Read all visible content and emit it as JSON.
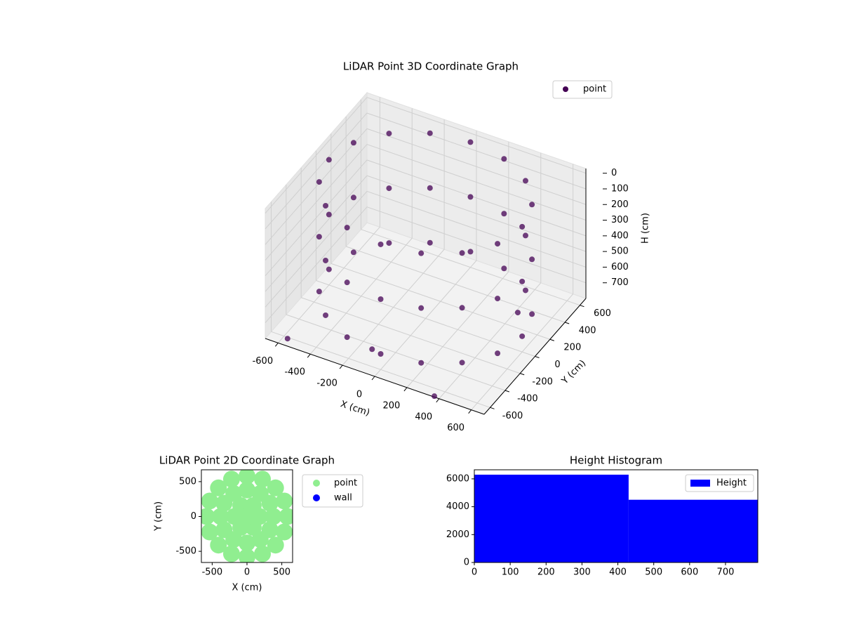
{
  "chart_data": [
    {
      "type": "scatter3d",
      "title": "LiDAR Point 3D Coordinate Graph",
      "xlabel": "X (cm)",
      "ylabel": "Y (cm)",
      "zlabel": "H (cm)",
      "xlim": [
        -680,
        680
      ],
      "ylim": [
        -680,
        680
      ],
      "zlim": [
        800,
        -30
      ],
      "xticks": [
        -600,
        -400,
        -200,
        0,
        200,
        400,
        600
      ],
      "yticks": [
        -600,
        -400,
        -200,
        0,
        200,
        400,
        600
      ],
      "zticks": [
        0,
        100,
        200,
        300,
        400,
        500,
        600,
        700
      ],
      "grid": true,
      "legend": "upper right",
      "series": [
        {
          "name": "point",
          "color": "#440154",
          "x": [
            600,
            554,
            424,
            230,
            0,
            -230,
            -424,
            -554,
            -600,
            -554,
            -424,
            -230,
            0,
            230,
            424,
            554,
            600,
            554,
            424,
            230,
            0,
            -230,
            -424,
            -554,
            -600,
            -554,
            -424,
            -230,
            0,
            230,
            424,
            554,
            600,
            554,
            424,
            230,
            0,
            -230,
            -424,
            -554,
            -600,
            -554,
            -424,
            -230,
            0,
            230,
            424,
            554,
            -560,
            380,
            480,
            -100
          ],
          "y": [
            0,
            230,
            424,
            554,
            600,
            554,
            424,
            230,
            0,
            -230,
            -424,
            -554,
            -600,
            -554,
            -424,
            -230,
            0,
            230,
            424,
            554,
            600,
            554,
            424,
            230,
            0,
            -230,
            -424,
            -554,
            -600,
            -554,
            -424,
            -230,
            0,
            230,
            424,
            554,
            600,
            554,
            424,
            230,
            0,
            -230,
            -424,
            -554,
            -600,
            -554,
            -424,
            -230,
            -640,
            -700,
            200,
            -500
          ],
          "z": [
            0,
            0,
            0,
            0,
            0,
            0,
            0,
            0,
            0,
            0,
            0,
            0,
            0,
            0,
            0,
            0,
            350,
            350,
            350,
            350,
            350,
            350,
            350,
            350,
            350,
            350,
            350,
            350,
            350,
            350,
            350,
            350,
            700,
            700,
            700,
            700,
            700,
            700,
            700,
            700,
            700,
            700,
            700,
            700,
            700,
            700,
            700,
            700,
            780,
            780,
            700,
            760
          ]
        }
      ]
    },
    {
      "type": "scatter",
      "title": "LiDAR Point 2D Coordinate Graph",
      "xlabel": "X (cm)",
      "ylabel": "Y (cm)",
      "xlim": [
        -655,
        655
      ],
      "ylim": [
        -660,
        670
      ],
      "xticks": [
        -500,
        0,
        500
      ],
      "yticks": [
        -500,
        0,
        500
      ],
      "legend": "outside right",
      "series": [
        {
          "name": "point",
          "color": "#90ee90",
          "x": [
            580,
            536,
            410,
            222,
            0,
            -222,
            -410,
            -536,
            -580,
            -536,
            -410,
            -222,
            0,
            222,
            410,
            536,
            380,
            329,
            190,
            0,
            -190,
            -329,
            -380,
            -329,
            -190,
            0,
            190,
            329,
            180,
            90,
            -90,
            -180,
            -90,
            90,
            0
          ],
          "y": [
            0,
            222,
            410,
            536,
            580,
            536,
            410,
            222,
            0,
            -222,
            -410,
            -536,
            -580,
            -536,
            -410,
            -222,
            0,
            190,
            329,
            380,
            329,
            190,
            0,
            -190,
            -329,
            -380,
            -329,
            -190,
            0,
            156,
            156,
            0,
            -156,
            -156,
            0
          ]
        },
        {
          "name": "wall",
          "color": "#0000ff",
          "x": [],
          "y": []
        }
      ]
    },
    {
      "type": "histogram",
      "title": "Height Histogram",
      "name": "Height",
      "color": "#0000ff",
      "bins": [
        0,
        430,
        790
      ],
      "values": [
        6300,
        4500
      ],
      "xlim": [
        0,
        790
      ],
      "ylim": [
        0,
        6650
      ],
      "xticks": [
        0,
        100,
        200,
        300,
        400,
        500,
        600,
        700
      ],
      "yticks": [
        0,
        2000,
        4000,
        6000
      ],
      "legend": "upper right"
    }
  ]
}
